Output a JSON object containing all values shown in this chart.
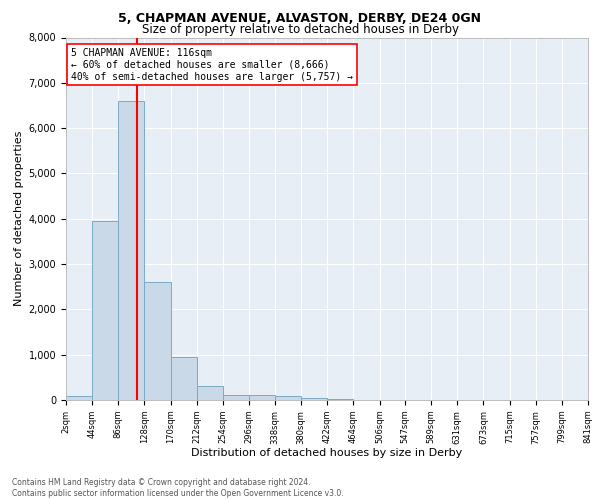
{
  "title1": "5, CHAPMAN AVENUE, ALVASTON, DERBY, DE24 0GN",
  "title2": "Size of property relative to detached houses in Derby",
  "xlabel": "Distribution of detached houses by size in Derby",
  "ylabel": "Number of detached properties",
  "annotation_line1": "5 CHAPMAN AVENUE: 116sqm",
  "annotation_line2": "← 60% of detached houses are smaller (8,666)",
  "annotation_line3": "40% of semi-detached houses are larger (5,757) →",
  "footer1": "Contains HM Land Registry data © Crown copyright and database right 2024.",
  "footer2": "Contains public sector information licensed under the Open Government Licence v3.0.",
  "bar_edges": [
    2,
    44,
    86,
    128,
    170,
    212,
    254,
    296,
    338,
    380,
    422,
    464,
    506,
    547,
    589,
    631,
    673,
    715,
    757,
    799,
    841
  ],
  "bar_heights": [
    80,
    3950,
    6600,
    2600,
    950,
    300,
    120,
    100,
    80,
    50,
    20,
    10,
    5,
    2,
    1,
    1,
    0,
    0,
    0,
    0
  ],
  "bar_color": "#c9d9e8",
  "bar_edge_color": "#7aaac8",
  "red_line_x": 116,
  "ylim": [
    0,
    8000
  ],
  "yticks": [
    0,
    1000,
    2000,
    3000,
    4000,
    5000,
    6000,
    7000,
    8000
  ],
  "bg_color": "#e8eef5",
  "plot_bg_color": "#e8eef5",
  "grid_color": "#ffffff",
  "title1_fontsize": 9,
  "title2_fontsize": 8.5,
  "xlabel_fontsize": 8,
  "ylabel_fontsize": 8,
  "annot_fontsize": 7,
  "tick_label_fontsize": 6,
  "ytick_fontsize": 7
}
